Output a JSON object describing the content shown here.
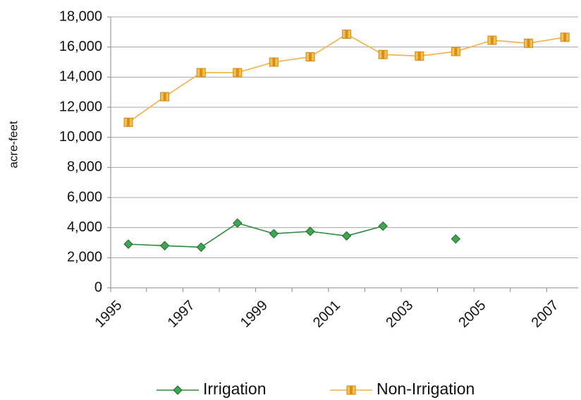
{
  "chart_data": {
    "type": "line",
    "y_label": "acre-feet",
    "categories": [
      "1995",
      null,
      "1997",
      null,
      "1999",
      null,
      "2001",
      null,
      "2003",
      null,
      "2005",
      null,
      "2007"
    ],
    "series": [
      {
        "name": "Irrigation",
        "color": "#2f8a3c",
        "marker": "diamond",
        "values": [
          2900,
          2800,
          2700,
          4300,
          3600,
          3750,
          3450,
          4100,
          null,
          3250,
          null,
          null,
          null
        ]
      },
      {
        "name": "Non-Irrigation",
        "color": "#f5b044",
        "marker": "square",
        "values": [
          11000,
          12700,
          14300,
          14300,
          15000,
          15350,
          16850,
          15500,
          15400,
          15700,
          16450,
          16250,
          16650
        ]
      }
    ],
    "ylim": [
      0,
      18000
    ],
    "yticks": [
      0,
      {
        "value": 2000,
        "label": "2,000"
      },
      {
        "value": 4000,
        "label": "4,000"
      },
      {
        "value": 6000,
        "label": "6,000"
      },
      {
        "value": 8000,
        "label": "8,000"
      },
      {
        "value": 10000,
        "label": "10,000"
      },
      {
        "value": 12000,
        "label": "12,000"
      },
      {
        "value": 14000,
        "label": "14,000"
      },
      {
        "value": 16000,
        "label": "16,000"
      },
      {
        "value": 18000,
        "label": "18,000"
      }
    ],
    "grid": true,
    "legend": "bottom"
  }
}
